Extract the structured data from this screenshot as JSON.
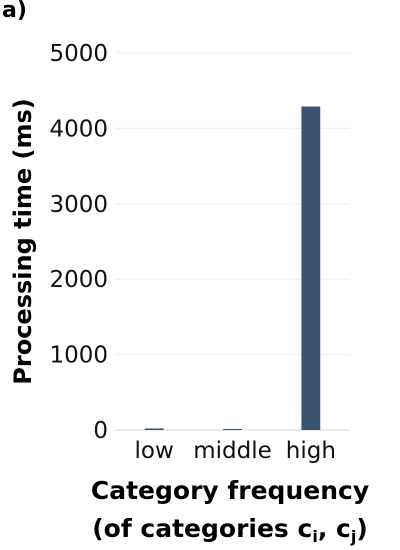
{
  "panel_label": "a)",
  "chart_data": {
    "type": "bar",
    "categories": [
      "low",
      "middle",
      "high"
    ],
    "values": [
      20,
      5,
      4290
    ],
    "ylabel": "Processing time (ms)",
    "xlabel": "Category frequency (of categories c_i, c_j)",
    "ylim": [
      0,
      5000
    ],
    "yticks": [
      0,
      1000,
      2000,
      3000,
      4000,
      5000
    ],
    "grid": true,
    "legend": "none"
  },
  "x_title": {
    "line1": "Category frequency",
    "line2_prefix": "(of categories c",
    "sub_i": "i",
    "line2_mid": ", c",
    "sub_j": "j",
    "line2_suffix": ")"
  },
  "colors": {
    "bar": "#3a5470",
    "grid": "#ebeef2",
    "axis": "#cfd7e3"
  }
}
